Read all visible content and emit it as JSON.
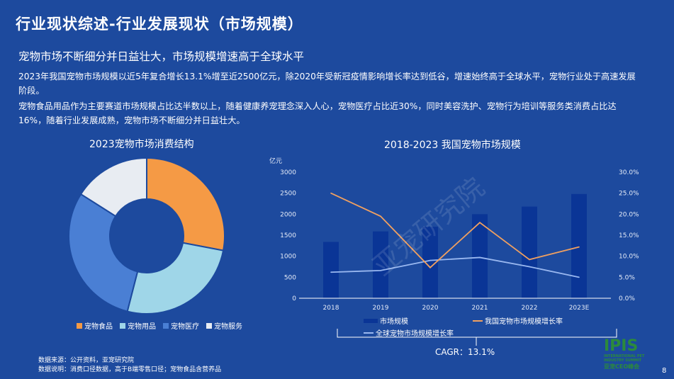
{
  "title": "行业现状综述-行业发展现状（市场规模）",
  "subtitle": "宠物市场不断细分并日益壮大，市场规模增速高于全球水平",
  "paragraphs": [
    "2023年我国宠物市场规模以近5年复合增长13.1%增至近2500亿元，除2020年受新冠疫情影响增长率达到低谷，增速始终高于全球水平，宠物行业处于高速发展阶段。",
    "宠物食品用品作为主要赛道市场规模占比达半数以上，随着健康养宠理念深入人心，宠物医疗占比近30%，同时美容洗护、宠物行为培训等服务类消费占比达16%，随着行业发展成熟，宠物市场不断细分并日益壮大。"
  ],
  "watermark": "亚宠研究院",
  "notes": [
    "数据来源：公开资料，亚宠研究院",
    "数据说明：消费口径数据，高于B端零售口径；宠物食品含营养品"
  ],
  "cagr": "CAGR：13.1%",
  "page_number": "8",
  "logo": {
    "text": "IPIS",
    "sub": "INTERNATIONAL PET INDUSTRY SUMMIT",
    "cn": "亚宠CEO峰会"
  },
  "chart_data": [
    {
      "type": "pie",
      "title": "2023宠物市场消费结构",
      "categories": [
        "宠物食品",
        "宠物用品",
        "宠物医疗",
        "宠物服务"
      ],
      "values": [
        28,
        26,
        30,
        16
      ],
      "colors": [
        "#f59a45",
        "#9fd6e8",
        "#4a7fd4",
        "#e8ecf2"
      ],
      "donut": true,
      "legend": "bottom"
    },
    {
      "type": "bar+line",
      "title": "2018-2023 我国宠物市场规模",
      "categories": [
        "2018",
        "2019",
        "2020",
        "2021",
        "2022",
        "2023E"
      ],
      "ylabel": "亿元",
      "ylim": [
        0,
        3000
      ],
      "yticks": [
        0,
        500,
        1000,
        1500,
        2000,
        2500,
        3000
      ],
      "y2lim": [
        0,
        30
      ],
      "y2ticks": [
        "0.0%",
        "5.0%",
        "10.0%",
        "15.0%",
        "20.0%",
        "25.0%",
        "30.0%"
      ],
      "series": [
        {
          "name": "市场规模",
          "type": "bar",
          "color": "#0a3596",
          "values": [
            1340,
            1590,
            1700,
            2000,
            2180,
            2480
          ]
        },
        {
          "name": "我国宠物市场规模增长率",
          "type": "line",
          "axis": "right",
          "color": "#f0a060",
          "values": [
            25.0,
            19.5,
            7.3,
            18.0,
            9.2,
            12.2
          ]
        },
        {
          "name": "全球宠物市场规模增长率",
          "type": "line",
          "axis": "right",
          "color": "#9ab8f0",
          "values": [
            6.2,
            6.6,
            9.0,
            9.7,
            7.5,
            5.0
          ]
        }
      ],
      "legend": "bottom"
    }
  ]
}
